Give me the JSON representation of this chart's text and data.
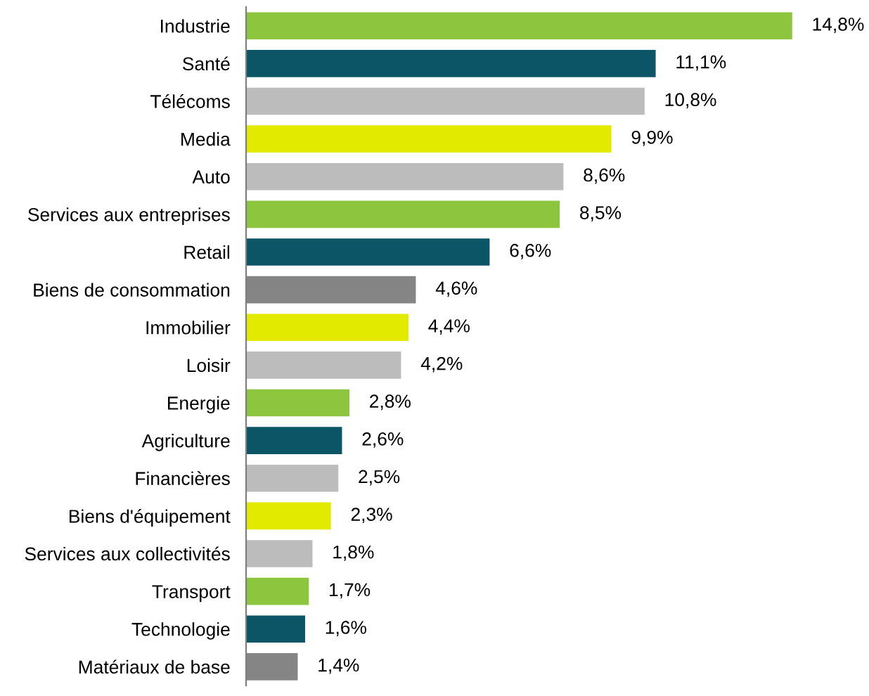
{
  "chart_data": {
    "type": "bar",
    "orientation": "horizontal",
    "categories": [
      "Industrie",
      "Santé",
      "Télécoms",
      "Media",
      "Auto",
      "Services aux entreprises",
      "Retail",
      "Biens de consommation",
      "Immobilier",
      "Loisir",
      "Energie",
      "Agriculture",
      "Financières",
      "Biens d'équipement",
      "Services aux collectivités",
      "Transport",
      "Technologie",
      "Matériaux de base"
    ],
    "values": [
      14.8,
      11.1,
      10.8,
      9.9,
      8.6,
      8.5,
      6.6,
      4.6,
      4.4,
      4.2,
      2.8,
      2.6,
      2.5,
      2.3,
      1.8,
      1.7,
      1.6,
      1.4
    ],
    "value_labels": [
      "14,8%",
      "11,1%",
      "10,8%",
      "9,9%",
      "8,6%",
      "8,5%",
      "6,6%",
      "4,6%",
      "4,4%",
      "4,2%",
      "2,8%",
      "2,6%",
      "2,5%",
      "2,3%",
      "1,8%",
      "1,7%",
      "1,6%",
      "1,4%"
    ],
    "colors": [
      "#8dc53e",
      "#0b5566",
      "#bcbcbc",
      "#e2ea00",
      "#bcbcbc",
      "#8dc53e",
      "#0b5566",
      "#858585",
      "#e2ea00",
      "#bcbcbc",
      "#8dc53e",
      "#0b5566",
      "#bcbcbc",
      "#e2ea00",
      "#bcbcbc",
      "#8dc53e",
      "#0b5566",
      "#858585"
    ],
    "tick_labels": "y",
    "grid": false,
    "legend": false
  }
}
